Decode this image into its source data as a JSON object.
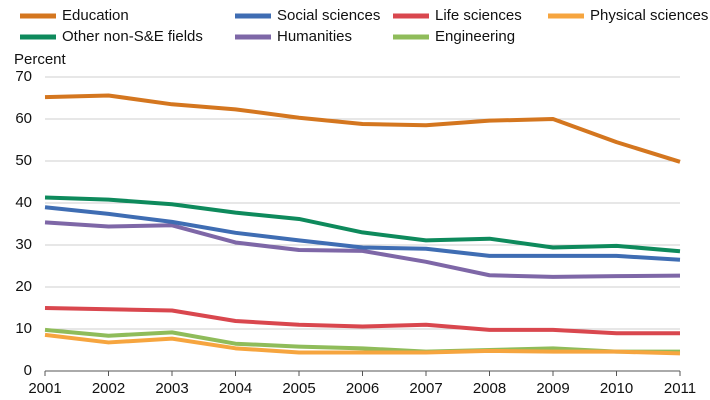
{
  "chart_data": {
    "type": "line",
    "y_label": "Percent",
    "x": [
      2001,
      2002,
      2003,
      2004,
      2005,
      2006,
      2007,
      2008,
      2009,
      2010,
      2011
    ],
    "xlim": [
      2001,
      2011
    ],
    "xticks": [
      2001,
      2002,
      2003,
      2004,
      2005,
      2006,
      2007,
      2008,
      2009,
      2010,
      2011
    ],
    "ylim": [
      0,
      70
    ],
    "yticks": [
      0,
      10,
      20,
      30,
      40,
      50,
      60,
      70
    ],
    "grid": true,
    "series": [
      {
        "name": "Education",
        "color": "#d4761f",
        "values": [
          65.2,
          65.6,
          63.5,
          62.3,
          60.3,
          58.8,
          58.5,
          59.6,
          60.0,
          54.5,
          49.8
        ]
      },
      {
        "name": "Social sciences",
        "color": "#3f6db3",
        "values": [
          39.0,
          37.4,
          35.5,
          32.9,
          31.1,
          29.4,
          29.1,
          27.4,
          27.4,
          27.4,
          26.5
        ]
      },
      {
        "name": "Life sciences",
        "color": "#d9474e",
        "values": [
          15.0,
          14.7,
          14.4,
          11.9,
          11.0,
          10.6,
          11.0,
          9.8,
          9.8,
          9.0,
          9.0
        ]
      },
      {
        "name": "Physical sciences",
        "color": "#f6a53f",
        "values": [
          8.6,
          6.8,
          7.7,
          5.4,
          4.4,
          4.4,
          4.4,
          4.8,
          4.6,
          4.6,
          4.2
        ]
      },
      {
        "name": "Other non-S&E fields",
        "color": "#0e8a5c",
        "values": [
          41.3,
          40.8,
          39.7,
          37.7,
          36.2,
          33.0,
          31.1,
          31.5,
          29.4,
          29.8,
          28.5
        ]
      },
      {
        "name": "Humanities",
        "color": "#7e67a7",
        "values": [
          35.4,
          34.4,
          34.7,
          30.6,
          28.8,
          28.6,
          26.0,
          22.8,
          22.4,
          22.6,
          22.7
        ]
      },
      {
        "name": "Engineering",
        "color": "#8fbc5a",
        "values": [
          9.8,
          8.4,
          9.2,
          6.5,
          5.8,
          5.4,
          4.6,
          5.0,
          5.4,
          4.6,
          4.6
        ]
      }
    ]
  }
}
